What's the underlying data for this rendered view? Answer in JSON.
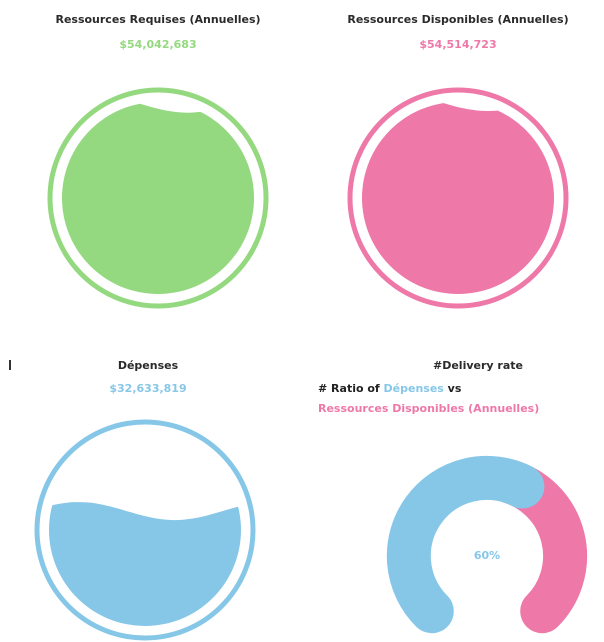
{
  "panels": [
    {
      "title": "Ressources Requises (Annuelles)",
      "value": 54042683,
      "value_label": "$54,042,683",
      "color": "#94d97f"
    },
    {
      "title": "Ressources Disponibles (Annuelles)",
      "value": 54514723,
      "value_label": "$54,514,723",
      "color": "#ee78a8"
    },
    {
      "title": "Dépenses",
      "value": 32633819,
      "value_label": "$32,633,819",
      "color": "#86c7e8"
    }
  ],
  "delivery": {
    "title": "#Delivery rate",
    "subtitle": [
      {
        "text": "# Ratio of ",
        "color": "#222222"
      },
      {
        "text": "Dépenses",
        "color": "#86c7e8"
      },
      {
        "text": " vs ",
        "color": "#222222"
      },
      {
        "text": "Ressources Disponibles (Annuelles)",
        "color": "#ee78a8"
      }
    ],
    "value": 60,
    "value_label": "60%",
    "color": "#86c7e8",
    "rest_color": "#ee78a8"
  }
}
